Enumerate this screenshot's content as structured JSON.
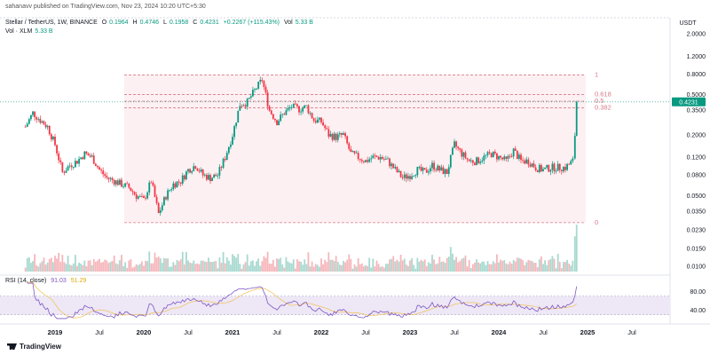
{
  "publisher": "sahanavv published on TradingView.com, Nov 23, 2024 10:20 UTC+5:30",
  "legend": {
    "symbol": "Stellar / TetherUS, 1W, BINANCE",
    "open_label": "O",
    "open": "0.1964",
    "high_label": "H",
    "high": "0.4746",
    "low_label": "L",
    "low": "0.1958",
    "close_label": "C",
    "close": "0.4231",
    "change": "+0.2267 (+115.43%)",
    "vol_label": "Vol",
    "vol": "5.33 B",
    "vol_row_label": "Vol · XLM",
    "vol_row_value": "5.33 B"
  },
  "rsi_legend": {
    "label": "RSI (14, close)",
    "rsi": "91.03",
    "ma": "51.29"
  },
  "footer_brand": "TradingView",
  "colors": {
    "up": "#089981",
    "down": "#f23645",
    "fib": "#d87a8a",
    "rsi": "#7e57c2",
    "rsi_ma": "#f2c14e",
    "price_tag": "#089981"
  },
  "chart_data": {
    "type": "candlestick",
    "price_axis": {
      "scale": "log",
      "unit": "USDT",
      "ticks": [
        "2.0000",
        "1.2000",
        "0.8000",
        "0.5000",
        "0.3500",
        "0.2000",
        "0.1200",
        "0.0800",
        "0.0500",
        "0.0350",
        "0.0230",
        "0.0150",
        "0.0100"
      ]
    },
    "last_price": "0.4231",
    "time_axis": {
      "labels": [
        "2019",
        "Jul",
        "2020",
        "Jul",
        "2021",
        "Jul",
        "2022",
        "Jul",
        "2023",
        "Jul",
        "2024",
        "Jul",
        "2025",
        "Jul"
      ],
      "dates": [
        "2019-01",
        "2019-07",
        "2020-01",
        "2020-07",
        "2021-01",
        "2021-07",
        "2022-01",
        "2022-07",
        "2023-01",
        "2023-07",
        "2024-01",
        "2024-07",
        "2025-01",
        "2025-07"
      ]
    },
    "fib_levels": [
      {
        "label": "1",
        "price": 0.78
      },
      {
        "label": "0.618",
        "price": 0.5
      },
      {
        "label": "0.5",
        "price": 0.43
      },
      {
        "label": "0.382",
        "price": 0.37
      },
      {
        "label": "0",
        "price": 0.027
      }
    ],
    "price_path": [
      [
        "2018-09",
        0.24
      ],
      [
        "2018-10",
        0.33
      ],
      [
        "2018-11",
        0.28
      ],
      [
        "2018-12",
        0.24
      ],
      [
        "2019-01",
        0.16
      ],
      [
        "2019-02",
        0.085
      ],
      [
        "2019-03",
        0.1
      ],
      [
        "2019-04",
        0.11
      ],
      [
        "2019-05",
        0.13
      ],
      [
        "2019-06",
        0.12
      ],
      [
        "2019-07",
        0.09
      ],
      [
        "2019-08",
        0.075
      ],
      [
        "2019-09",
        0.07
      ],
      [
        "2019-10",
        0.065
      ],
      [
        "2019-11",
        0.06
      ],
      [
        "2019-12",
        0.05
      ],
      [
        "2020-01",
        0.045
      ],
      [
        "2020-02",
        0.07
      ],
      [
        "2020-03",
        0.033
      ],
      [
        "2020-04",
        0.05
      ],
      [
        "2020-05",
        0.065
      ],
      [
        "2020-06",
        0.07
      ],
      [
        "2020-07",
        0.09
      ],
      [
        "2020-08",
        0.1
      ],
      [
        "2020-09",
        0.08
      ],
      [
        "2020-10",
        0.075
      ],
      [
        "2020-11",
        0.08
      ],
      [
        "2020-12",
        0.12
      ],
      [
        "2021-01",
        0.2
      ],
      [
        "2021-02",
        0.4
      ],
      [
        "2021-03",
        0.42
      ],
      [
        "2021-04",
        0.55
      ],
      [
        "2021-05",
        0.7
      ],
      [
        "2021-06",
        0.35
      ],
      [
        "2021-07",
        0.27
      ],
      [
        "2021-08",
        0.33
      ],
      [
        "2021-09",
        0.38
      ],
      [
        "2021-10",
        0.36
      ],
      [
        "2021-11",
        0.38
      ],
      [
        "2021-12",
        0.28
      ],
      [
        "2022-01",
        0.27
      ],
      [
        "2022-02",
        0.2
      ],
      [
        "2022-03",
        0.19
      ],
      [
        "2022-04",
        0.2
      ],
      [
        "2022-05",
        0.13
      ],
      [
        "2022-06",
        0.12
      ],
      [
        "2022-07",
        0.11
      ],
      [
        "2022-08",
        0.12
      ],
      [
        "2022-09",
        0.12
      ],
      [
        "2022-10",
        0.11
      ],
      [
        "2022-11",
        0.09
      ],
      [
        "2022-12",
        0.075
      ],
      [
        "2023-01",
        0.08
      ],
      [
        "2023-02",
        0.09
      ],
      [
        "2023-03",
        0.085
      ],
      [
        "2023-04",
        0.1
      ],
      [
        "2023-05",
        0.09
      ],
      [
        "2023-06",
        0.085
      ],
      [
        "2023-07",
        0.16
      ],
      [
        "2023-08",
        0.13
      ],
      [
        "2023-09",
        0.11
      ],
      [
        "2023-10",
        0.11
      ],
      [
        "2023-11",
        0.12
      ],
      [
        "2023-12",
        0.13
      ],
      [
        "2024-01",
        0.12
      ],
      [
        "2024-02",
        0.11
      ],
      [
        "2024-03",
        0.14
      ],
      [
        "2024-04",
        0.11
      ],
      [
        "2024-05",
        0.11
      ],
      [
        "2024-06",
        0.095
      ],
      [
        "2024-07",
        0.09
      ],
      [
        "2024-08",
        0.095
      ],
      [
        "2024-09",
        0.095
      ],
      [
        "2024-10",
        0.095
      ],
      [
        "2024-11",
        0.11
      ],
      [
        "2024-11-10",
        0.2
      ],
      [
        "2024-11-17",
        0.4231
      ]
    ],
    "rsi": {
      "ticks": [
        "80.00",
        "40.00"
      ],
      "band": [
        30,
        70
      ],
      "last": 91.03,
      "ma_last": 51.29
    }
  }
}
